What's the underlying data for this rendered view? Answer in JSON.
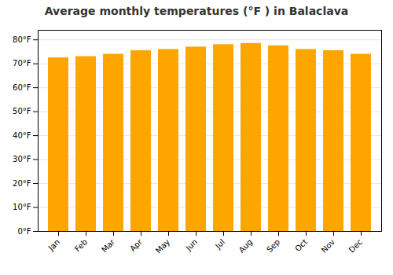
{
  "chart_data": {
    "type": "bar",
    "title": "Average monthly temperatures (°F ) in Balaclava",
    "categories": [
      "Jan",
      "Feb",
      "Mar",
      "Apr",
      "May",
      "Jun",
      "Jul",
      "Aug",
      "Sep",
      "Oct",
      "Nov",
      "Dec"
    ],
    "values": [
      72.5,
      73.0,
      74.0,
      75.5,
      76.0,
      77.0,
      78.0,
      78.5,
      77.5,
      76.0,
      75.5,
      74.0
    ],
    "color": "#FFA500",
    "ylim": [
      0,
      84
    ],
    "yticks": [
      {
        "value": 0,
        "label": "0°F"
      },
      {
        "value": 10,
        "label": "10°F"
      },
      {
        "value": 20,
        "label": "20°F"
      },
      {
        "value": 30,
        "label": "30°F"
      },
      {
        "value": 40,
        "label": "40°F"
      },
      {
        "value": 50,
        "label": "50°F"
      },
      {
        "value": 60,
        "label": "60°F"
      },
      {
        "value": 70,
        "label": "70°F"
      },
      {
        "value": 80,
        "label": "80°F"
      }
    ],
    "grid": true
  }
}
